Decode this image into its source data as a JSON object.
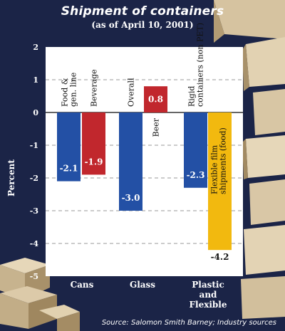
{
  "colors": {
    "background": "#1b2447",
    "plot": "#ffffff",
    "blue": "#2350a5",
    "red": "#c1272d",
    "yellow": "#f2b90f",
    "text": "#ffffff"
  },
  "title": "Shipment of containers",
  "subtitle": "(as of April 10, 2001)",
  "source": "Source: Salomon Smith Barney; Industry sources",
  "chart_data": {
    "type": "bar",
    "title": "Shipment of containers",
    "subtitle": "(as of April 10, 2001)",
    "ylabel": "Percent",
    "xlabel": "",
    "ylim": [
      -5,
      2
    ],
    "yticks": [
      "2",
      "1",
      "0",
      "-1",
      "-2",
      "-3",
      "-4",
      "-5"
    ],
    "ytick_values": [
      2,
      1,
      0,
      -1,
      -2,
      -3,
      -4,
      -5
    ],
    "groups": [
      {
        "label": "Cans",
        "bars": [
          {
            "label": "Food & gen. line",
            "value": -2.1,
            "value_label": "-2.1",
            "color": "#2350a5"
          },
          {
            "label": "Beverage",
            "value": -1.9,
            "value_label": "-1.9",
            "color": "#c1272d"
          }
        ]
      },
      {
        "label": "Glass",
        "bars": [
          {
            "label": "Overall",
            "value": -3.0,
            "value_label": "-3.0",
            "color": "#2350a5"
          },
          {
            "label": "Beer",
            "value": 0.8,
            "value_label": "0.8",
            "color": "#c1272d"
          }
        ]
      },
      {
        "label": "Plastic and Flexible",
        "bars": [
          {
            "label": "Rigid containers (non PET)",
            "value": -2.3,
            "value_label": "-2.3",
            "color": "#2350a5"
          },
          {
            "label": "Flexible film shipments (food)",
            "value": -4.2,
            "value_label": "-4.2",
            "color": "#f2b90f"
          }
        ]
      }
    ]
  }
}
